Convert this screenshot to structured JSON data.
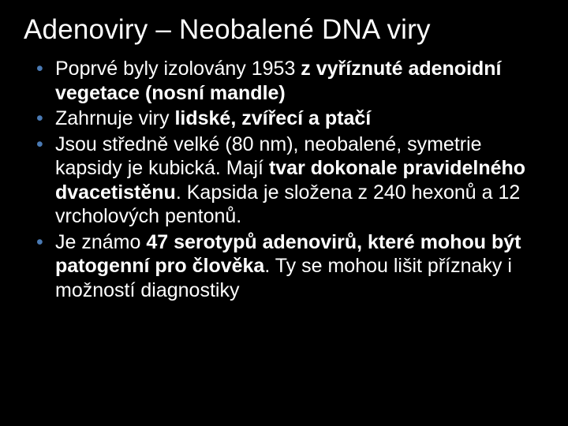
{
  "slide": {
    "title": "Adenoviry – Neobalené DNA viry",
    "title_color": "#ffffff",
    "title_fontsize": 35,
    "background_color": "#000000",
    "text_color": "#ffffff",
    "bullet_color": "#4a7ab4",
    "body_fontsize": 25,
    "bullets": [
      {
        "runs": [
          {
            "text": "Poprvé byly izolovány 1953 ",
            "bold": false
          },
          {
            "text": "z vyříznuté adenoidní vegetace (nosní mandle)",
            "bold": true
          }
        ]
      },
      {
        "runs": [
          {
            "text": "Zahrnuje viry ",
            "bold": false
          },
          {
            "text": "lidské, zvířecí a ptačí",
            "bold": true
          }
        ]
      },
      {
        "runs": [
          {
            "text": "Jsou středně velké (80 nm), neobalené, symetrie kapsidy je kubická. Mají ",
            "bold": false
          },
          {
            "text": "tvar dokonale pravidelného dvacetistěnu",
            "bold": true
          },
          {
            "text": ". Kapsida je složena z 240 hexonů a 12 vrcholových pentonů.",
            "bold": false
          }
        ]
      },
      {
        "runs": [
          {
            "text": "Je známo ",
            "bold": false
          },
          {
            "text": "47 serotypů adenovirů, které mohou být patogenní pro člověka",
            "bold": true
          },
          {
            "text": ". Ty se mohou lišit příznaky i možností diagnostiky",
            "bold": false
          }
        ]
      }
    ]
  }
}
